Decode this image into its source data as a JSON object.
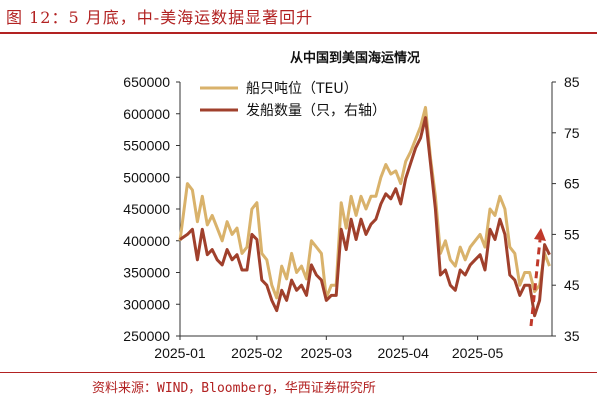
{
  "figure": {
    "title": "图 12：5 月底，中-美海运数据显著回升",
    "source": "资料来源：WIND，Bloomberg，华西证券研究所"
  },
  "chart_data": {
    "type": "line",
    "title": "从中国到美国海运情况",
    "x_ticks": [
      "2025-01",
      "2025-02",
      "2025-03",
      "2025-04",
      "2025-05"
    ],
    "y_left": {
      "min": 250000,
      "max": 650000,
      "ticks": [
        650000,
        600000,
        550000,
        500000,
        450000,
        400000,
        350000,
        300000,
        250000
      ]
    },
    "y_right": {
      "min": 35,
      "max": 85,
      "ticks": [
        85,
        75,
        65,
        55,
        45,
        35
      ]
    },
    "legend_position": "top-left",
    "trend_arrow": {
      "color": "#c0392b",
      "style": "dashed",
      "direction": "up"
    },
    "series": [
      {
        "name": "船只吨位（TEU）",
        "axis": "left",
        "color": "#d9b26b",
        "x": [
          "2025-01-01",
          "2025-01-04",
          "2025-01-06",
          "2025-01-08",
          "2025-01-10",
          "2025-01-12",
          "2025-01-14",
          "2025-01-16",
          "2025-01-18",
          "2025-01-20",
          "2025-01-22",
          "2025-01-24",
          "2025-01-26",
          "2025-01-28",
          "2025-01-30",
          "2025-02-01",
          "2025-02-03",
          "2025-02-05",
          "2025-02-07",
          "2025-02-09",
          "2025-02-11",
          "2025-02-13",
          "2025-02-15",
          "2025-02-17",
          "2025-02-19",
          "2025-02-21",
          "2025-02-23",
          "2025-02-25",
          "2025-02-27",
          "2025-03-01",
          "2025-03-03",
          "2025-03-05",
          "2025-03-07",
          "2025-03-09",
          "2025-03-11",
          "2025-03-13",
          "2025-03-15",
          "2025-03-17",
          "2025-03-19",
          "2025-03-21",
          "2025-03-23",
          "2025-03-25",
          "2025-03-27",
          "2025-03-29",
          "2025-03-31",
          "2025-04-02",
          "2025-04-04",
          "2025-04-06",
          "2025-04-08",
          "2025-04-10",
          "2025-04-12",
          "2025-04-14",
          "2025-04-16",
          "2025-04-18",
          "2025-04-20",
          "2025-04-22",
          "2025-04-24",
          "2025-04-26",
          "2025-04-28",
          "2025-04-30",
          "2025-05-02",
          "2025-05-04",
          "2025-05-06",
          "2025-05-08",
          "2025-05-10",
          "2025-05-12",
          "2025-05-14",
          "2025-05-16",
          "2025-05-18",
          "2025-05-20",
          "2025-05-22",
          "2025-05-24",
          "2025-05-26",
          "2025-05-28",
          "2025-05-30"
        ],
        "values": [
          400000,
          490000,
          480000,
          430000,
          470000,
          425000,
          440000,
          420000,
          400000,
          430000,
          410000,
          420000,
          380000,
          390000,
          450000,
          460000,
          380000,
          370000,
          330000,
          310000,
          360000,
          340000,
          380000,
          350000,
          360000,
          340000,
          400000,
          390000,
          380000,
          310000,
          330000,
          330000,
          460000,
          420000,
          470000,
          440000,
          470000,
          450000,
          470000,
          470000,
          500000,
          520000,
          505000,
          510000,
          490000,
          525000,
          540000,
          560000,
          580000,
          610000,
          530000,
          470000,
          380000,
          400000,
          370000,
          360000,
          390000,
          370000,
          390000,
          400000,
          410000,
          390000,
          450000,
          440000,
          470000,
          450000,
          390000,
          380000,
          330000,
          350000,
          350000,
          320000,
          330000,
          380000,
          360000
        ]
      },
      {
        "name": "发船数量（只，右轴）",
        "axis": "right",
        "color": "#a0402c",
        "x": [
          "2025-01-01",
          "2025-01-04",
          "2025-01-06",
          "2025-01-08",
          "2025-01-10",
          "2025-01-12",
          "2025-01-14",
          "2025-01-16",
          "2025-01-18",
          "2025-01-20",
          "2025-01-22",
          "2025-01-24",
          "2025-01-26",
          "2025-01-28",
          "2025-01-30",
          "2025-02-01",
          "2025-02-03",
          "2025-02-05",
          "2025-02-07",
          "2025-02-09",
          "2025-02-11",
          "2025-02-13",
          "2025-02-15",
          "2025-02-17",
          "2025-02-19",
          "2025-02-21",
          "2025-02-23",
          "2025-02-25",
          "2025-02-27",
          "2025-03-01",
          "2025-03-03",
          "2025-03-05",
          "2025-03-07",
          "2025-03-09",
          "2025-03-11",
          "2025-03-13",
          "2025-03-15",
          "2025-03-17",
          "2025-03-19",
          "2025-03-21",
          "2025-03-23",
          "2025-03-25",
          "2025-03-27",
          "2025-03-29",
          "2025-03-31",
          "2025-04-02",
          "2025-04-04",
          "2025-04-06",
          "2025-04-08",
          "2025-04-10",
          "2025-04-12",
          "2025-04-14",
          "2025-04-16",
          "2025-04-18",
          "2025-04-20",
          "2025-04-22",
          "2025-04-24",
          "2025-04-26",
          "2025-04-28",
          "2025-04-30",
          "2025-05-02",
          "2025-05-04",
          "2025-05-06",
          "2025-05-08",
          "2025-05-10",
          "2025-05-12",
          "2025-05-14",
          "2025-05-16",
          "2025-05-18",
          "2025-05-20",
          "2025-05-22",
          "2025-05-24",
          "2025-05-26",
          "2025-05-28",
          "2025-05-30"
        ],
        "values": [
          54,
          55,
          56,
          50,
          56,
          51,
          52,
          50,
          49,
          52,
          50,
          51,
          48,
          48,
          55,
          54,
          46,
          45,
          42,
          40,
          44,
          42,
          46,
          44,
          45,
          43,
          49,
          47,
          46,
          42,
          43,
          43,
          56,
          52,
          58,
          54,
          58,
          55,
          57,
          58,
          61,
          63,
          62,
          64,
          61,
          66,
          69,
          72,
          74,
          78,
          69,
          60,
          47,
          48,
          45,
          44,
          48,
          47,
          49,
          50,
          51,
          48,
          56,
          54,
          58,
          55,
          47,
          46,
          43,
          45,
          45,
          39,
          42,
          53,
          51
        ]
      }
    ]
  }
}
